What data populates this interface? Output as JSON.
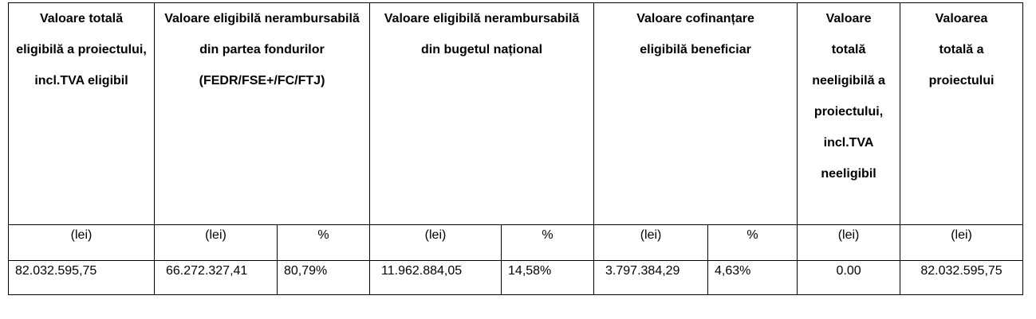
{
  "table": {
    "headers": [
      "Valoare totală eligibilă a proiectului, incl.TVA eligibil",
      "Valoare eligibilă nerambursabilă din partea fondurilor (FEDR/FSE+/FC/FTJ)",
      "Valoare eligibilă nerambursabilă din bugetul național",
      "Valoare cofinanțare eligibilă beneficiar",
      "Valoare totală neeligibilă a proiectului, incl.TVA neeligibil",
      "Valoarea totală a proiectului"
    ],
    "units": [
      "(lei)",
      "(lei)",
      "%",
      "(lei)",
      "%",
      "(lei)",
      "%",
      "(lei)",
      "(lei)"
    ],
    "rows": [
      [
        "82.032.595,75",
        "66.272.327,41",
        "80,79%",
        "11.962.884,05",
        "14,58%",
        "3.797.384,29",
        "4,63%",
        "0.00",
        "82.032.595,75"
      ]
    ]
  }
}
